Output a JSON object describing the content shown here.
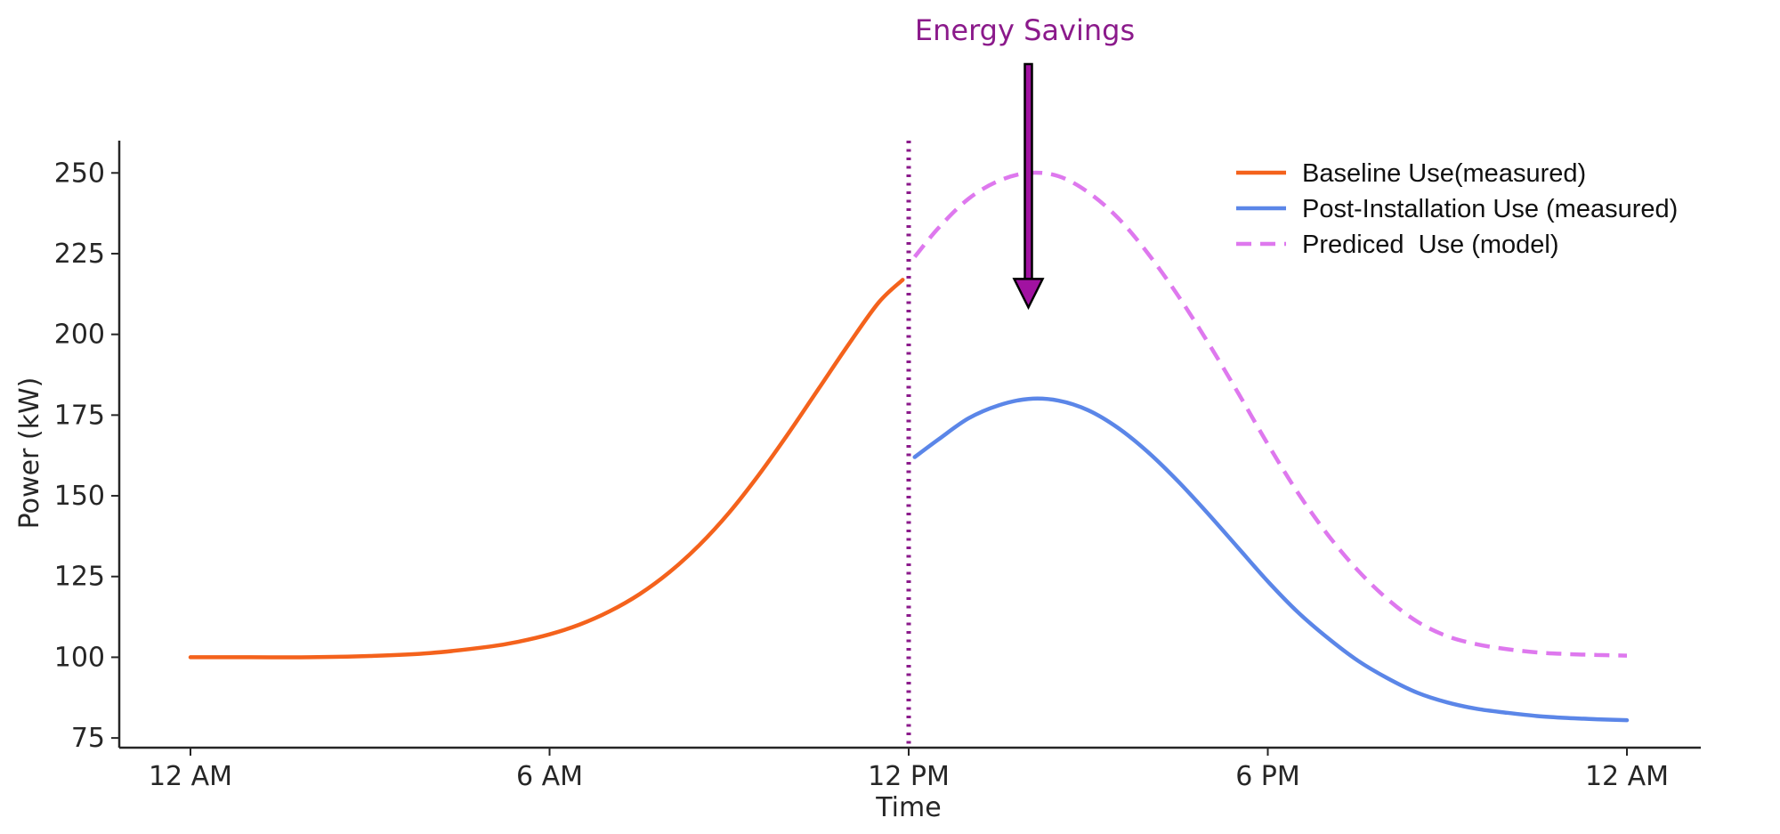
{
  "chart_data": {
    "type": "line",
    "title": "",
    "xlabel": "Time",
    "ylabel": "Power (kW)",
    "xlim": [
      0,
      24
    ],
    "ylim": [
      72,
      260
    ],
    "x_ticks": [
      {
        "value": 0,
        "label": "12 AM"
      },
      {
        "value": 6,
        "label": "6 AM"
      },
      {
        "value": 12,
        "label": "12 PM"
      },
      {
        "value": 18,
        "label": "6 PM"
      },
      {
        "value": 24,
        "label": "12 AM"
      }
    ],
    "y_ticks": [
      75,
      100,
      125,
      150,
      175,
      200,
      225,
      250
    ],
    "grid": false,
    "legend_position": "top-right",
    "divider_x": 12,
    "series": [
      {
        "name": "Baseline Use(measured)",
        "style": "solid",
        "color": "#f4621c",
        "x": [
          0,
          1,
          2,
          3,
          4,
          5,
          5.5,
          6,
          6.5,
          7,
          7.5,
          8,
          8.5,
          9,
          9.5,
          10,
          10.5,
          11,
          11.5,
          11.9
        ],
        "y": [
          100,
          100,
          100,
          100.4,
          101.3,
          103.3,
          104.9,
          107.1,
          110.1,
          114.2,
          119.5,
          126.3,
          134.7,
          144.8,
          156.6,
          169.6,
          183.3,
          197.0,
          209.9,
          216.9
        ]
      },
      {
        "name": "Post-Installation Use (measured)",
        "style": "solid",
        "color": "#5b86e8",
        "x": [
          12.1,
          12.5,
          13,
          13.5,
          14,
          14.5,
          15,
          15.5,
          16,
          16.5,
          17,
          17.5,
          18,
          18.5,
          19,
          19.5,
          20,
          20.5,
          21,
          21.5,
          22,
          22.5,
          23,
          23.5,
          24
        ],
        "y": [
          162,
          167.5,
          174,
          178,
          180,
          179.5,
          176.5,
          171,
          163.5,
          154.5,
          144.5,
          134,
          123.5,
          114,
          106,
          99,
          93.5,
          89,
          86,
          84,
          82.8,
          81.8,
          81.2,
          80.8,
          80.5
        ]
      },
      {
        "name": "Prediced  Use (model)",
        "style": "dashed",
        "color": "#de78ee",
        "x": [
          12.1,
          12.5,
          13,
          13.5,
          14,
          14.5,
          15,
          15.5,
          16,
          16.5,
          17,
          17.5,
          18,
          18.5,
          19,
          19.5,
          20,
          20.5,
          21,
          21.5,
          22,
          22.5,
          23,
          23.5,
          24
        ],
        "y": [
          224,
          233,
          242,
          247.5,
          250,
          249,
          244,
          236,
          225,
          212,
          197.5,
          182,
          166,
          151,
          138,
          127,
          118,
          111,
          106.5,
          104,
          102.5,
          101.5,
          101,
          100.7,
          100.5
        ]
      }
    ],
    "annotation": {
      "text": "Energy Savings",
      "color": "#8b1a8b",
      "arrow_fill": "#a112a1",
      "arrow_x": 14,
      "arrow_tip_y": 210
    },
    "divider_color": "#8b1a8b"
  }
}
